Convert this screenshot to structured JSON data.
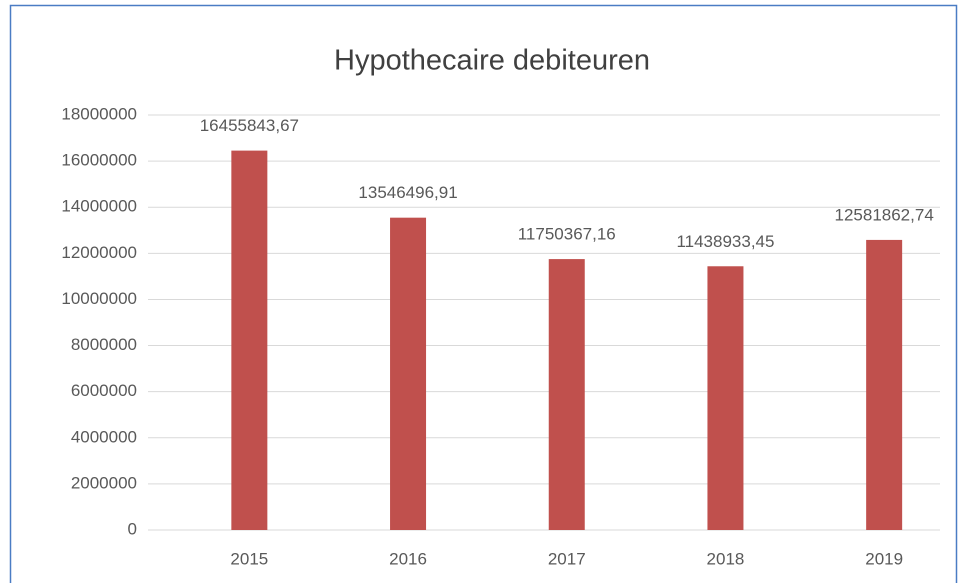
{
  "chart_data": {
    "type": "bar",
    "title": "Hypothecaire debiteuren",
    "categories": [
      "2015",
      "2016",
      "2017",
      "2018",
      "2019"
    ],
    "values": [
      16455843.67,
      13546496.91,
      11750367.16,
      11438933.45,
      12581862.74
    ],
    "value_labels": [
      "16455843,67",
      "13546496,91",
      "11750367,16",
      "11438933,45",
      "12581862,74"
    ],
    "color": "#c0504d",
    "ylim": [
      0,
      18000000
    ],
    "yticks": [
      0,
      2000000,
      4000000,
      6000000,
      8000000,
      10000000,
      12000000,
      14000000,
      16000000,
      18000000
    ],
    "grid": true
  }
}
